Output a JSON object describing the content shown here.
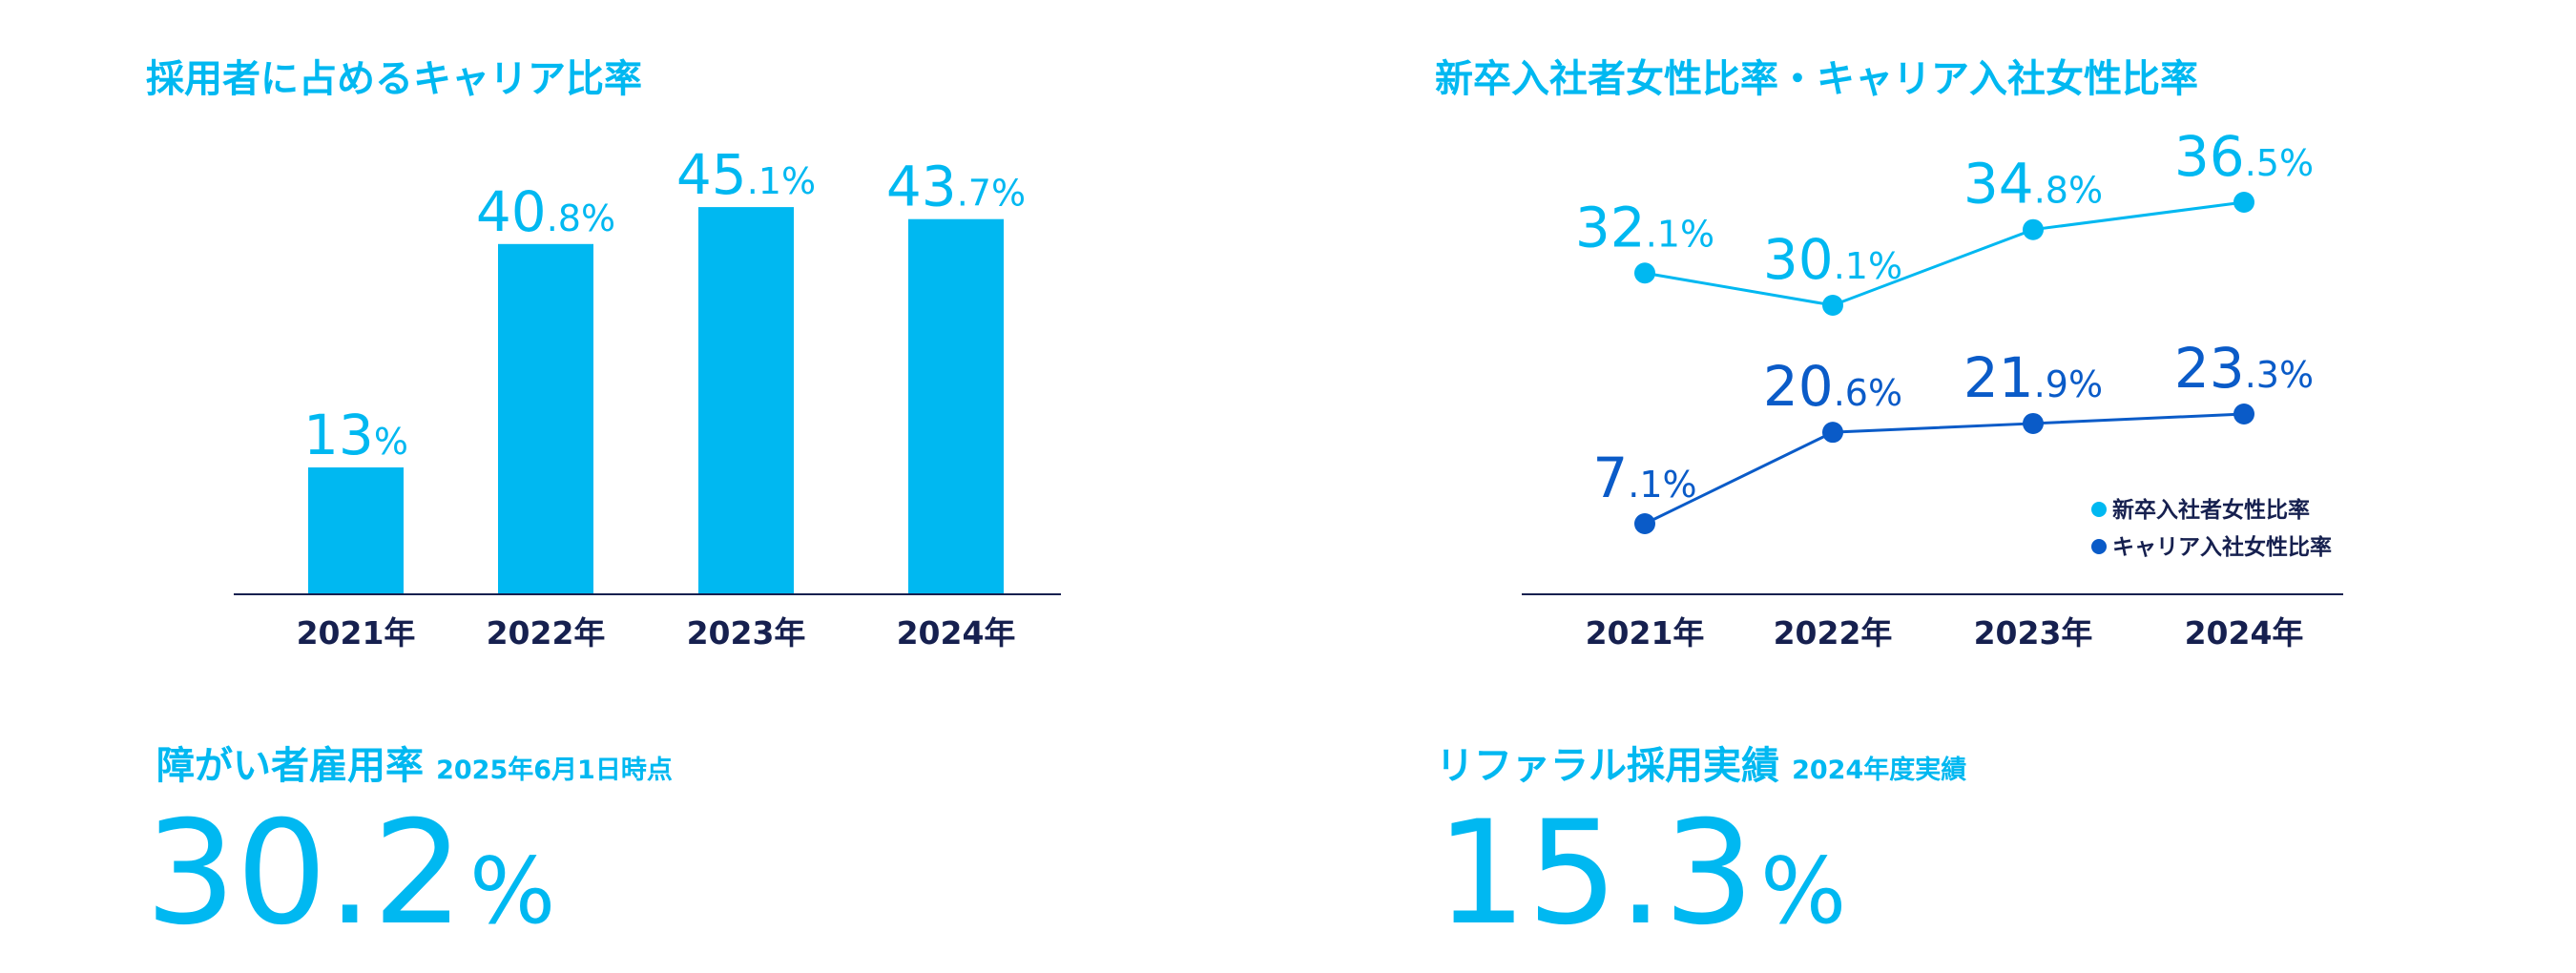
{
  "colors": {
    "light": "#00b8f1",
    "dark": "#0a5bc8",
    "axis": "#16204f"
  },
  "chart_data": [
    {
      "type": "bar",
      "title": "採用者に占めるキャリア比率",
      "categories": [
        "2021年",
        "2022年",
        "2023年",
        "2024年"
      ],
      "values": [
        13,
        40.8,
        45.1,
        43.7
      ],
      "value_labels": [
        "13%",
        "40.8%",
        "45.1%",
        "43.7%"
      ],
      "unit": "%",
      "grid": false
    },
    {
      "type": "line",
      "title": "新卒入社者女性比率・キャリア入社女性比率",
      "categories": [
        "2021年",
        "2022年",
        "2023年",
        "2024年"
      ],
      "series": [
        {
          "name": "新卒入社者女性比率",
          "values": [
            32.1,
            30.1,
            34.8,
            36.5
          ],
          "color": "#00b8f1"
        },
        {
          "name": "キャリア入社女性比率",
          "values": [
            7.1,
            20.6,
            21.9,
            23.3
          ],
          "color": "#0a5bc8"
        }
      ],
      "unit": "%",
      "legend_position": "bottom-right",
      "grid": false
    }
  ],
  "stats": [
    {
      "title": "障がい者雇用率",
      "note": "2025年6月1日時点",
      "value": "30.2",
      "unit": "%"
    },
    {
      "title": "リファラル採用実績",
      "note": "2024年度実績",
      "value": "15.3",
      "unit": "%"
    }
  ]
}
